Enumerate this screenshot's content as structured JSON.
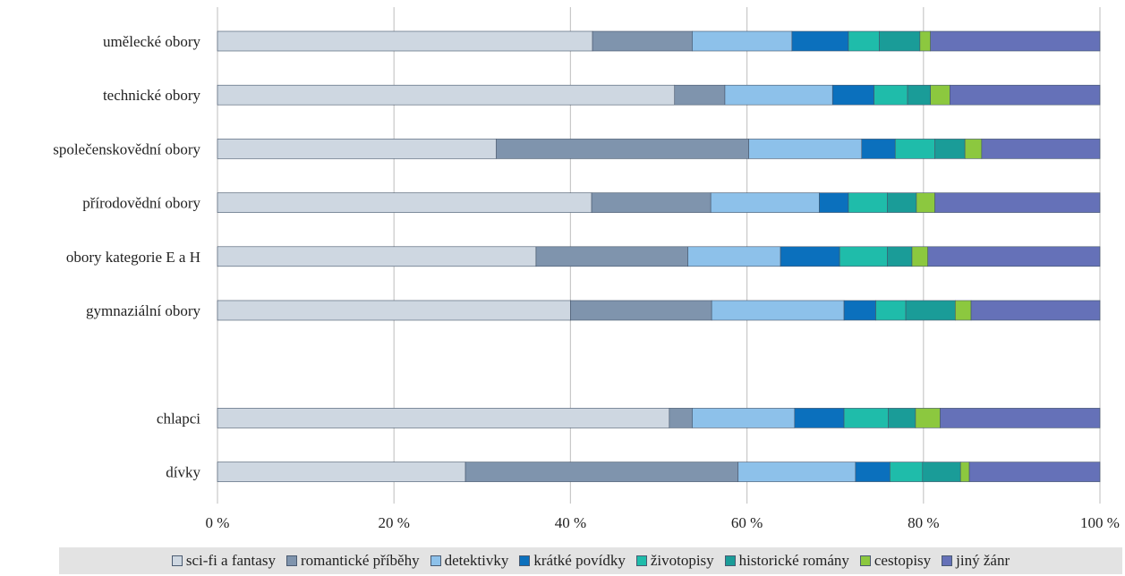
{
  "chart_data": {
    "type": "bar",
    "orientation": "horizontal",
    "stacked": "percent",
    "categories": [
      "umělecké obory",
      "technické obory",
      "společenskovědní obory",
      "přírodovědní obory",
      "obory kategorie E a H",
      "gymnaziální obory",
      "",
      "chlapci",
      "dívky"
    ],
    "series": [
      {
        "name": "sci-fi a fantasy",
        "color": "#ced7e1",
        "values": [
          42.5,
          51.8,
          31.6,
          42.4,
          36.1,
          40.0,
          null,
          51.2,
          28.1
        ]
      },
      {
        "name": "romantické příběhy",
        "color": "#7f94ad",
        "values": [
          11.3,
          5.7,
          28.6,
          13.5,
          17.2,
          16.0,
          null,
          2.6,
          30.9
        ]
      },
      {
        "name": "detektivky",
        "color": "#8dc1ea",
        "values": [
          11.3,
          12.2,
          12.8,
          12.3,
          10.5,
          15.0,
          null,
          11.6,
          13.3
        ]
      },
      {
        "name": "krátké povídky",
        "color": "#0b70bd",
        "values": [
          6.4,
          4.7,
          3.8,
          3.3,
          6.7,
          3.6,
          null,
          5.6,
          3.9
        ]
      },
      {
        "name": "životopisy",
        "color": "#1fbcaa",
        "values": [
          3.5,
          3.8,
          4.5,
          4.4,
          5.4,
          3.4,
          null,
          5.0,
          3.7
        ]
      },
      {
        "name": "historické romány",
        "color": "#1a9c98",
        "values": [
          4.6,
          2.6,
          3.4,
          3.3,
          2.8,
          5.6,
          null,
          3.1,
          4.3
        ]
      },
      {
        "name": "cestopisy",
        "color": "#8cc83f",
        "values": [
          1.2,
          2.2,
          1.9,
          2.1,
          1.8,
          1.8,
          null,
          2.8,
          1.0
        ]
      },
      {
        "name": "jiný žánr",
        "color": "#6571b8",
        "values": [
          19.2,
          17.0,
          13.4,
          18.7,
          19.5,
          14.6,
          null,
          18.1,
          14.8
        ]
      }
    ],
    "xticks": [
      "0 %",
      "20 %",
      "40 %",
      "60 %",
      "80 %",
      "100 %"
    ],
    "xlim": [
      0,
      100
    ],
    "grid": true,
    "legend": "bottom"
  }
}
